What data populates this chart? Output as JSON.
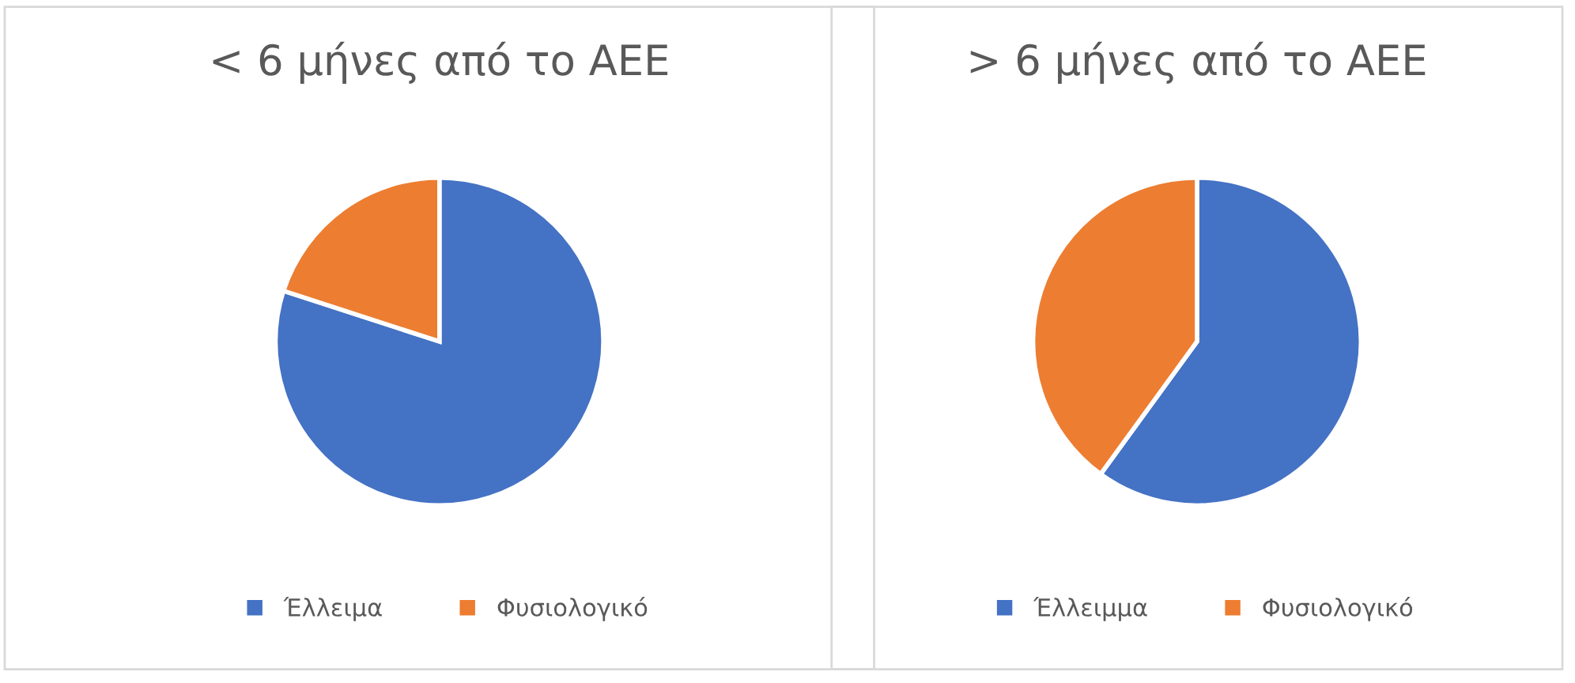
{
  "chart_data": [
    {
      "type": "pie",
      "title": "< 6 μήνες από το ΑΕΕ",
      "categories": [
        "Έλλειμα",
        "Φυσιολογικό"
      ],
      "values": [
        80,
        20
      ],
      "colors": [
        "#4472c4",
        "#ed7d31"
      ],
      "legend": "bottom"
    },
    {
      "type": "pie",
      "title": "> 6 μήνες από το ΑΕΕ",
      "categories": [
        "Έλλειμμα",
        "Φυσιολογικό"
      ],
      "values": [
        60,
        40
      ],
      "colors": [
        "#4472c4",
        "#ed7d31"
      ],
      "legend": "bottom"
    }
  ]
}
